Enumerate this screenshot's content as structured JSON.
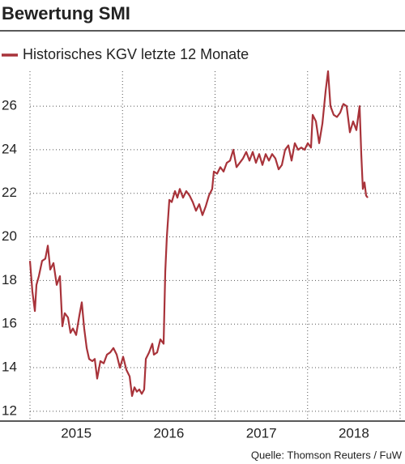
{
  "chart_data": {
    "type": "line",
    "title": "Bewertung SMI",
    "source": "Quelle: Thomson Reuters / FuW",
    "xlim": [
      2015,
      2019
    ],
    "xgrid": [
      2015,
      2016,
      2017,
      2018,
      2019
    ],
    "xticks": [
      {
        "value": 2015.5,
        "label": "2015"
      },
      {
        "value": 2016.5,
        "label": "2016"
      },
      {
        "value": 2017.5,
        "label": "2017"
      },
      {
        "value": 2018.5,
        "label": "2018"
      }
    ],
    "ylim": [
      11.55,
      27.6
    ],
    "yticks": [
      12,
      14,
      16,
      18,
      20,
      22,
      24,
      26
    ],
    "grid": true,
    "series": [
      {
        "name": "Historisches KGV letzte 12 Monate",
        "color": "#a8333a",
        "x": [
          2015.0,
          2015.026,
          2015.053,
          2015.07,
          2015.096,
          2015.131,
          2015.166,
          2015.193,
          2015.219,
          2015.254,
          2015.289,
          2015.324,
          2015.35,
          2015.376,
          2015.411,
          2015.438,
          2015.464,
          2015.499,
          2015.534,
          2015.56,
          2015.586,
          2015.613,
          2015.639,
          2015.674,
          2015.7,
          2015.726,
          2015.761,
          2015.797,
          2015.832,
          2015.867,
          2015.902,
          2015.937,
          2015.972,
          2016.007,
          2016.042,
          2016.077,
          2016.103,
          2016.129,
          2016.155,
          2016.182,
          2016.208,
          2016.234,
          2016.252,
          2016.287,
          2016.322,
          2016.339,
          2016.374,
          2016.409,
          2016.444,
          2016.462,
          2016.479,
          2016.506,
          2016.532,
          2016.567,
          2016.593,
          2016.619,
          2016.654,
          2016.689,
          2016.724,
          2016.759,
          2016.794,
          2016.829,
          2016.864,
          2016.899,
          2016.934,
          2016.969,
          2016.987,
          2017.022,
          2017.057,
          2017.092,
          2017.127,
          2017.162,
          2017.197,
          2017.232,
          2017.267,
          2017.302,
          2017.337,
          2017.372,
          2017.407,
          2017.442,
          2017.477,
          2017.512,
          2017.547,
          2017.582,
          2017.617,
          2017.652,
          2017.687,
          2017.722,
          2017.757,
          2017.792,
          2017.827,
          2017.862,
          2017.897,
          2017.932,
          2017.967,
          2018.002,
          2018.037,
          2018.055,
          2018.09,
          2018.125,
          2018.16,
          2018.195,
          2018.221,
          2018.247,
          2018.282,
          2018.317,
          2018.352,
          2018.387,
          2018.422,
          2018.457,
          2018.492,
          2018.527,
          2018.562,
          2018.58,
          2018.597,
          2018.615,
          2018.632,
          2018.65
        ],
        "values": [
          18.9,
          17.5,
          16.6,
          17.8,
          18.2,
          18.9,
          19.0,
          19.6,
          18.5,
          18.8,
          17.8,
          18.2,
          15.9,
          16.5,
          16.3,
          15.6,
          15.8,
          15.5,
          16.4,
          17.0,
          15.8,
          14.9,
          14.4,
          14.3,
          14.4,
          13.5,
          14.3,
          14.2,
          14.6,
          14.7,
          14.9,
          14.6,
          14.0,
          14.5,
          13.9,
          13.6,
          12.7,
          13.1,
          12.9,
          13.0,
          12.8,
          13.0,
          14.4,
          14.7,
          15.1,
          14.6,
          14.7,
          15.3,
          15.1,
          18.4,
          20.0,
          21.7,
          21.6,
          22.1,
          21.8,
          22.2,
          21.8,
          22.1,
          21.9,
          21.6,
          21.2,
          21.5,
          21.0,
          21.4,
          21.9,
          22.2,
          23.0,
          22.9,
          23.2,
          23.0,
          23.4,
          23.5,
          24.0,
          23.2,
          23.4,
          23.6,
          23.9,
          23.5,
          23.9,
          23.4,
          23.8,
          23.3,
          23.8,
          23.5,
          23.8,
          23.6,
          23.1,
          23.3,
          24.0,
          24.2,
          23.5,
          24.3,
          24.0,
          24.1,
          24.0,
          24.3,
          24.1,
          25.6,
          25.3,
          24.3,
          25.2,
          26.7,
          27.6,
          26.0,
          25.6,
          25.5,
          25.7,
          26.1,
          26.0,
          24.8,
          25.3,
          24.9,
          26.0,
          23.8,
          22.2,
          22.5,
          21.9,
          21.8
        ]
      }
    ]
  }
}
